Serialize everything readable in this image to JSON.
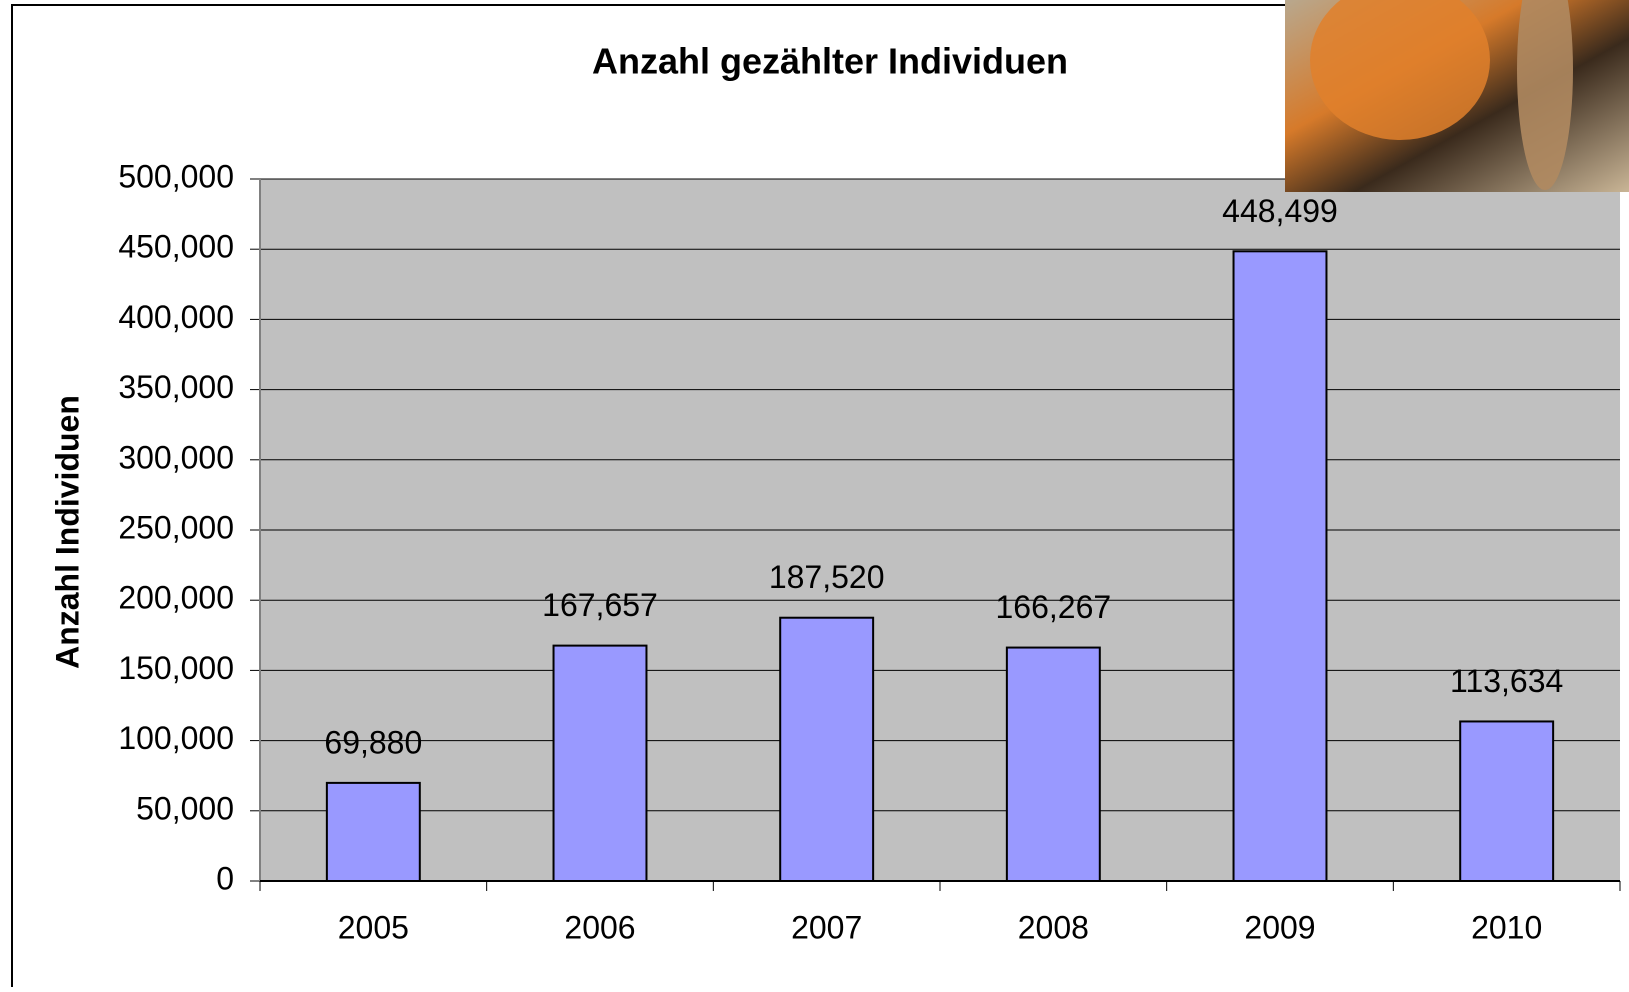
{
  "chart_data": {
    "type": "bar",
    "title": "Anzahl gezählter Individuen",
    "y_label": "Anzahl Individuen",
    "categories": [
      "2005",
      "2006",
      "2007",
      "2008",
      "2009",
      "2010"
    ],
    "values": [
      69880,
      167657,
      187520,
      166267,
      448499,
      113634
    ],
    "value_labels": [
      "69,880",
      "167,657",
      "187,520",
      "166,267",
      "448,499",
      "113,634"
    ],
    "color": "#9999ff",
    "ylim": [
      0,
      500000
    ],
    "yticks": [
      0,
      {
        "value": 50000,
        "label": "50,000"
      },
      {
        "value": 100000,
        "label": "100,000"
      },
      {
        "value": 150000,
        "label": "150,000"
      },
      {
        "value": 200000,
        "label": "200,000"
      },
      {
        "value": 250000,
        "label": "250,000"
      },
      {
        "value": 300000,
        "label": "300,000"
      },
      {
        "value": 350000,
        "label": "350,000"
      },
      {
        "value": 400000,
        "label": "400,000"
      },
      {
        "value": 450000,
        "label": "450,000"
      },
      {
        "value": 500000,
        "label": "500,000"
      }
    ],
    "grid": true
  }
}
